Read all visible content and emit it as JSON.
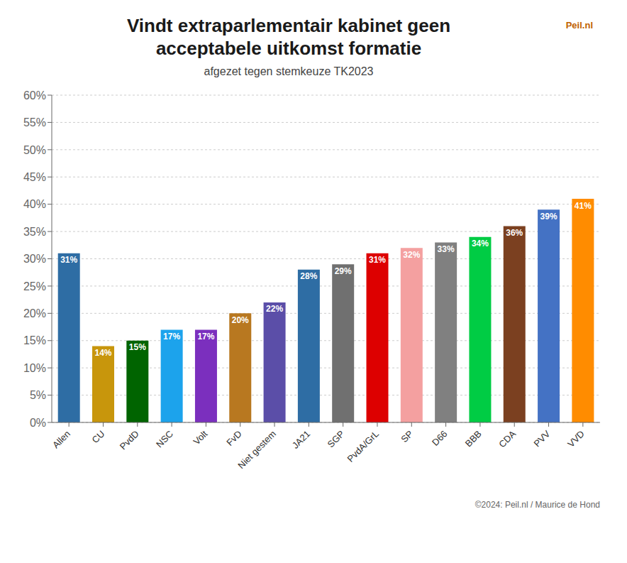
{
  "chart_data": {
    "type": "bar",
    "title": "Vindt extraparlementair kabinet geen\nacceptabele uitkomst formatie",
    "subtitle": "afgezet tegen stemkeuze TK2023",
    "annotations": [
      "©2024: Peil.nl / Maurice de Hond",
      "Peil.nl"
    ],
    "categories": [
      "Allen",
      "CU",
      "PvdD",
      "NSC",
      "Volt",
      "FvD",
      "Niet gestem",
      "JA21",
      "SGP",
      "PvdA/GrL",
      "SP",
      "D66",
      "BBB",
      "CDA",
      "PVV",
      "VVD"
    ],
    "values": [
      31,
      14,
      15,
      17,
      17,
      20,
      22,
      28,
      29,
      31,
      32,
      33,
      34,
      36,
      39,
      41
    ],
    "value_labels": [
      "31%",
      "14%",
      "15%",
      "17%",
      "17%",
      "20%",
      "22%",
      "28%",
      "29%",
      "31%",
      "32%",
      "33%",
      "34%",
      "36%",
      "39%",
      "41%"
    ],
    "colors": [
      "#2E6DA4",
      "#C8960C",
      "#006400",
      "#1CA3EC",
      "#7B2FBE",
      "#B87820",
      "#5B4EA8",
      "#2E6DA4",
      "#707070",
      "#DD0000",
      "#F4A0A0",
      "#808080",
      "#00CC44",
      "#7B4020",
      "#4472C4",
      "#FF8C00"
    ],
    "ylim": [
      0,
      60
    ],
    "yticks": [
      {
        "value": 0,
        "label": "0%"
      },
      {
        "value": 5,
        "label": "5%"
      },
      {
        "value": 10,
        "label": "10%"
      },
      {
        "value": 15,
        "label": "15%"
      },
      {
        "value": 20,
        "label": "20%"
      },
      {
        "value": 25,
        "label": "25%"
      },
      {
        "value": 30,
        "label": "30%"
      },
      {
        "value": 35,
        "label": "35%"
      },
      {
        "value": 40,
        "label": "40%"
      },
      {
        "value": 45,
        "label": "45%"
      },
      {
        "value": 50,
        "label": "50%"
      },
      {
        "value": 55,
        "label": "55%"
      },
      {
        "value": 60,
        "label": "60%"
      }
    ],
    "grid": true,
    "data_labels": true
  }
}
